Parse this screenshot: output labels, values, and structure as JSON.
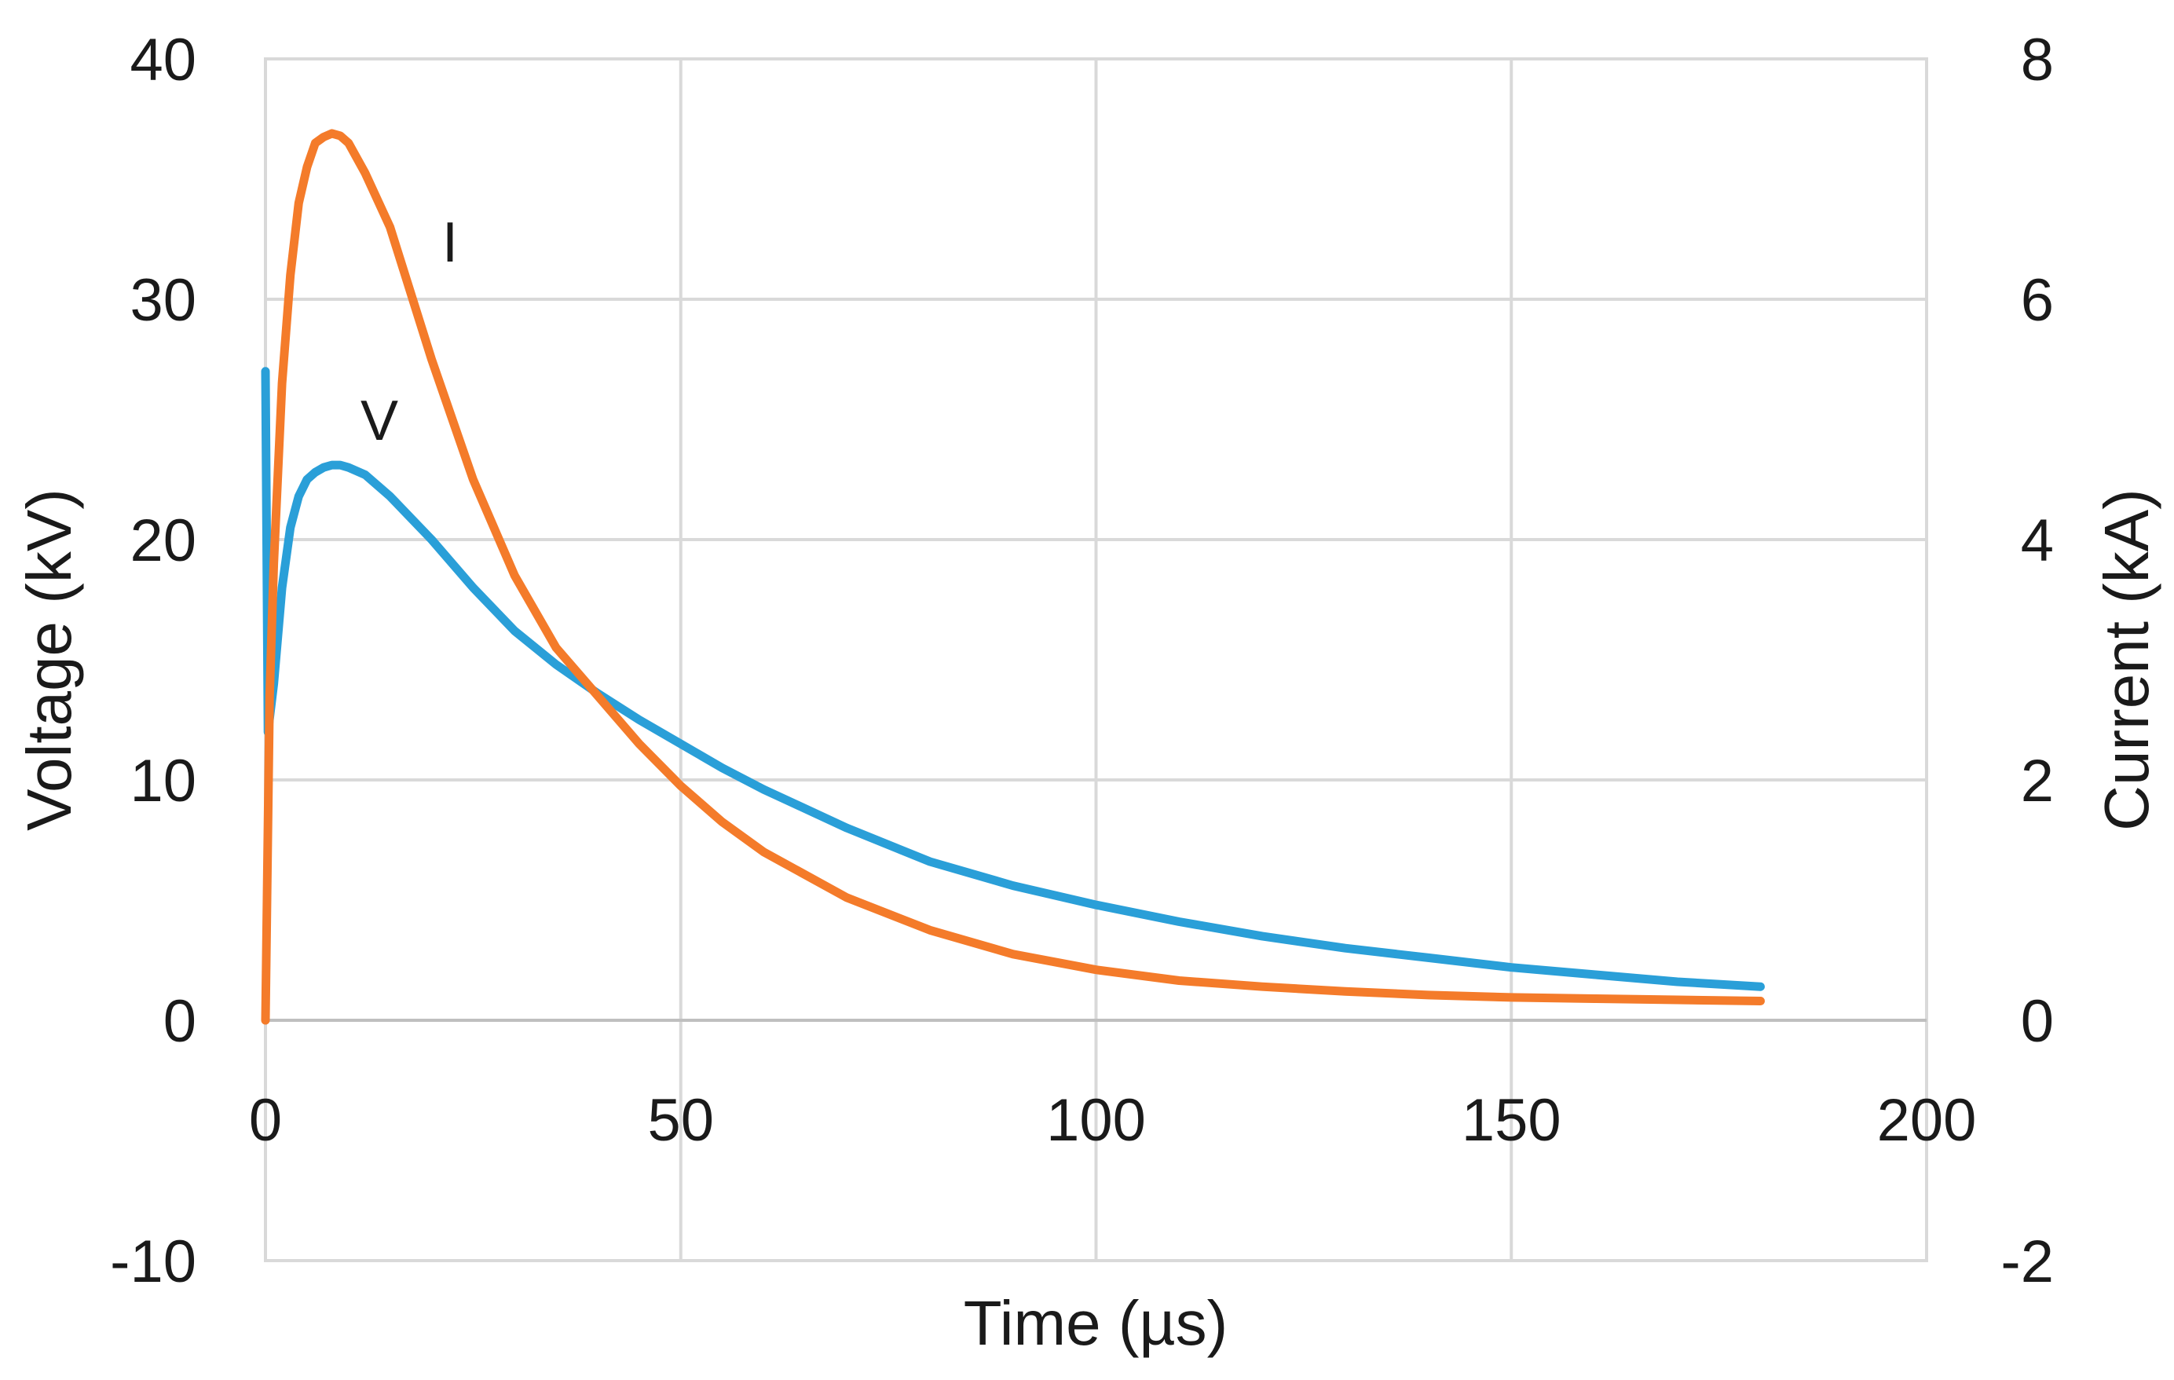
{
  "chart_data": {
    "type": "line",
    "xlabel": "Time (µs)",
    "ylabel_left": "Voltage (kV)",
    "ylabel_right": "Current (kA)",
    "xlim": [
      0,
      200
    ],
    "ylim_left": [
      -10,
      40
    ],
    "ylim_right": [
      -2,
      8
    ],
    "x_ticks": [
      "0",
      "50",
      "100",
      "150",
      "200"
    ],
    "y_left_ticks": [
      "-10",
      "0",
      "10",
      "20",
      "30",
      "40"
    ],
    "y_right_ticks": [
      "-2",
      "0",
      "2",
      "4",
      "6",
      "8"
    ],
    "grid": true,
    "series": [
      {
        "name": "V",
        "axis": "left",
        "color": "#2a9fd8",
        "x": [
          0,
          0.3,
          1,
          2,
          3,
          4,
          5,
          6,
          7,
          8,
          9,
          10,
          12,
          15,
          20,
          25,
          30,
          35,
          40,
          45,
          50,
          55,
          60,
          70,
          80,
          90,
          100,
          110,
          120,
          130,
          140,
          150,
          160,
          170,
          180
        ],
        "y": [
          27,
          12,
          14,
          18,
          20.5,
          21.8,
          22.5,
          22.8,
          23,
          23.1,
          23.1,
          23,
          22.7,
          21.8,
          20,
          18,
          16.2,
          14.8,
          13.6,
          12.5,
          11.5,
          10.5,
          9.6,
          8,
          6.6,
          5.6,
          4.8,
          4.1,
          3.5,
          3,
          2.6,
          2.2,
          1.9,
          1.6,
          1.4
        ]
      },
      {
        "name": "I",
        "axis": "right",
        "color": "#f47b2a",
        "x": [
          0,
          0.5,
          1,
          2,
          3,
          4,
          5,
          6,
          7,
          8,
          9,
          10,
          12,
          15,
          20,
          25,
          30,
          35,
          40,
          45,
          50,
          55,
          60,
          70,
          80,
          90,
          100,
          110,
          120,
          130,
          140,
          150,
          160,
          170,
          180
        ],
        "y": [
          0,
          2.7,
          3.8,
          5.3,
          6.2,
          6.8,
          7.1,
          7.3,
          7.35,
          7.38,
          7.36,
          7.3,
          7.05,
          6.6,
          5.5,
          4.5,
          3.7,
          3.1,
          2.7,
          2.3,
          1.95,
          1.65,
          1.4,
          1.02,
          0.75,
          0.55,
          0.42,
          0.33,
          0.28,
          0.24,
          0.21,
          0.19,
          0.18,
          0.17,
          0.16
        ]
      }
    ]
  }
}
